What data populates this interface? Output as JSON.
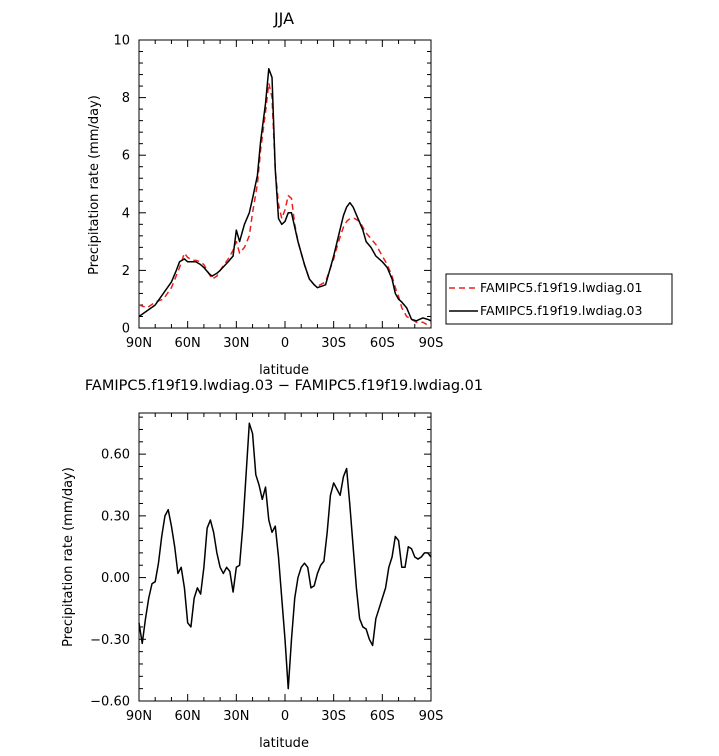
{
  "chart_data": [
    {
      "type": "line",
      "title": "JJA",
      "xlabel": "latitude",
      "ylabel": "Precipitation rate (mm/day)",
      "xlim": [
        90,
        -90
      ],
      "ylim": [
        0,
        10
      ],
      "xticks": [
        90,
        60,
        30,
        0,
        -30,
        -60,
        -90
      ],
      "xtick_labels": [
        "90N",
        "60N",
        "30N",
        "0",
        "30S",
        "60S",
        "90S"
      ],
      "yticks": [
        0,
        2,
        4,
        6,
        8,
        10
      ],
      "ytick_labels": [
        "0",
        "2",
        "4",
        "6",
        "8",
        "10"
      ],
      "legend_position": "right",
      "series": [
        {
          "name": "FAMIPC5.f19f19.lwdiag.01",
          "color": "#e8231d",
          "style": "dashed",
          "points": [
            [
              90,
              0.8
            ],
            [
              85,
              0.7
            ],
            [
              80,
              0.9
            ],
            [
              75,
              1.0
            ],
            [
              70,
              1.4
            ],
            [
              65,
              2.1
            ],
            [
              62,
              2.6
            ],
            [
              60,
              2.45
            ],
            [
              57,
              2.35
            ],
            [
              55,
              2.35
            ],
            [
              52,
              2.3
            ],
            [
              50,
              2.2
            ],
            [
              47,
              1.9
            ],
            [
              45,
              1.7
            ],
            [
              42,
              1.8
            ],
            [
              40,
              2.0
            ],
            [
              35,
              2.4
            ],
            [
              32,
              2.7
            ],
            [
              30,
              3.0
            ],
            [
              28,
              2.6
            ],
            [
              25,
              2.8
            ],
            [
              22,
              3.2
            ],
            [
              20,
              4.0
            ],
            [
              17,
              5.0
            ],
            [
              15,
              6.2
            ],
            [
              12,
              7.5
            ],
            [
              10,
              8.5
            ],
            [
              8,
              8.0
            ],
            [
              6,
              5.5
            ],
            [
              4,
              4.3
            ],
            [
              2,
              3.8
            ],
            [
              0,
              4.1
            ],
            [
              -2,
              4.6
            ],
            [
              -4,
              4.5
            ],
            [
              -6,
              3.6
            ],
            [
              -8,
              3.0
            ],
            [
              -12,
              2.2
            ],
            [
              -15,
              1.7
            ],
            [
              -18,
              1.5
            ],
            [
              -20,
              1.45
            ],
            [
              -25,
              1.6
            ],
            [
              -30,
              2.4
            ],
            [
              -33,
              3.0
            ],
            [
              -36,
              3.5
            ],
            [
              -38,
              3.7
            ],
            [
              -40,
              3.8
            ],
            [
              -43,
              3.8
            ],
            [
              -46,
              3.7
            ],
            [
              -48,
              3.5
            ],
            [
              -50,
              3.3
            ],
            [
              -53,
              3.1
            ],
            [
              -56,
              2.9
            ],
            [
              -60,
              2.5
            ],
            [
              -63,
              2.2
            ],
            [
              -66,
              1.8
            ],
            [
              -68,
              1.4
            ],
            [
              -70,
              1.1
            ],
            [
              -72,
              0.7
            ],
            [
              -75,
              0.4
            ],
            [
              -78,
              0.3
            ],
            [
              -81,
              0.2
            ],
            [
              -85,
              0.2
            ],
            [
              -88,
              0.1
            ],
            [
              -90,
              0.1
            ]
          ]
        },
        {
          "name": "FAMIPC5.f19f19.lwdiag.03",
          "color": "#000000",
          "style": "solid",
          "points": [
            [
              90,
              0.4
            ],
            [
              85,
              0.6
            ],
            [
              80,
              0.8
            ],
            [
              75,
              1.2
            ],
            [
              70,
              1.6
            ],
            [
              67,
              2.0
            ],
            [
              65,
              2.3
            ],
            [
              62,
              2.4
            ],
            [
              60,
              2.3
            ],
            [
              57,
              2.3
            ],
            [
              55,
              2.3
            ],
            [
              52,
              2.2
            ],
            [
              50,
              2.1
            ],
            [
              47,
              1.9
            ],
            [
              45,
              1.8
            ],
            [
              42,
              1.9
            ],
            [
              40,
              2.0
            ],
            [
              35,
              2.3
            ],
            [
              32,
              2.5
            ],
            [
              30,
              3.4
            ],
            [
              28,
              3.0
            ],
            [
              25,
              3.6
            ],
            [
              22,
              4.0
            ],
            [
              20,
              4.5
            ],
            [
              17,
              5.3
            ],
            [
              15,
              6.5
            ],
            [
              12,
              7.8
            ],
            [
              10,
              9.0
            ],
            [
              8,
              8.7
            ],
            [
              6,
              5.5
            ],
            [
              4,
              3.8
            ],
            [
              2,
              3.6
            ],
            [
              0,
              3.7
            ],
            [
              -2,
              4.0
            ],
            [
              -4,
              4.0
            ],
            [
              -6,
              3.5
            ],
            [
              -8,
              3.0
            ],
            [
              -12,
              2.2
            ],
            [
              -15,
              1.7
            ],
            [
              -18,
              1.5
            ],
            [
              -20,
              1.4
            ],
            [
              -25,
              1.5
            ],
            [
              -30,
              2.5
            ],
            [
              -33,
              3.2
            ],
            [
              -36,
              3.9
            ],
            [
              -38,
              4.2
            ],
            [
              -40,
              4.35
            ],
            [
              -42,
              4.2
            ],
            [
              -45,
              3.8
            ],
            [
              -48,
              3.4
            ],
            [
              -50,
              3.0
            ],
            [
              -53,
              2.8
            ],
            [
              -56,
              2.5
            ],
            [
              -60,
              2.3
            ],
            [
              -63,
              2.1
            ],
            [
              -66,
              1.7
            ],
            [
              -68,
              1.2
            ],
            [
              -70,
              1.0
            ],
            [
              -72,
              0.9
            ],
            [
              -75,
              0.7
            ],
            [
              -78,
              0.3
            ],
            [
              -81,
              0.25
            ],
            [
              -83,
              0.3
            ],
            [
              -85,
              0.35
            ],
            [
              -88,
              0.3
            ],
            [
              -90,
              0.25
            ]
          ]
        }
      ]
    },
    {
      "type": "line",
      "title": "FAMIPC5.f19f19.lwdiag.03 − FAMIPC5.f19f19.lwdiag.01",
      "xlabel": "latitude",
      "ylabel": "Precipitation rate (mm/day)",
      "xlim": [
        90,
        -90
      ],
      "ylim": [
        -0.6,
        0.8
      ],
      "xticks": [
        90,
        60,
        30,
        0,
        -30,
        -60,
        -90
      ],
      "xtick_labels": [
        "90N",
        "60N",
        "30N",
        "0",
        "30S",
        "60S",
        "90S"
      ],
      "yticks": [
        -0.6,
        -0.3,
        0.0,
        0.3,
        0.6
      ],
      "ytick_labels": [
        "−0.60",
        "−0.30",
        "0.00",
        "0.30",
        "0.60"
      ],
      "series": [
        {
          "color": "#000000",
          "style": "solid",
          "points": [
            [
              90,
              -0.22
            ],
            [
              88,
              -0.32
            ],
            [
              86,
              -0.2
            ],
            [
              84,
              -0.1
            ],
            [
              82,
              -0.03
            ],
            [
              80,
              -0.02
            ],
            [
              78,
              0.07
            ],
            [
              76,
              0.2
            ],
            [
              74,
              0.3
            ],
            [
              72,
              0.33
            ],
            [
              70,
              0.25
            ],
            [
              68,
              0.15
            ],
            [
              66,
              0.02
            ],
            [
              64,
              0.05
            ],
            [
              62,
              -0.05
            ],
            [
              60,
              -0.22
            ],
            [
              58,
              -0.24
            ],
            [
              56,
              -0.1
            ],
            [
              54,
              -0.05
            ],
            [
              52,
              -0.08
            ],
            [
              50,
              0.05
            ],
            [
              48,
              0.24
            ],
            [
              46,
              0.28
            ],
            [
              44,
              0.22
            ],
            [
              42,
              0.12
            ],
            [
              40,
              0.05
            ],
            [
              38,
              0.02
            ],
            [
              36,
              0.05
            ],
            [
              34,
              0.03
            ],
            [
              32,
              -0.07
            ],
            [
              30,
              0.05
            ],
            [
              28,
              0.06
            ],
            [
              26,
              0.25
            ],
            [
              24,
              0.5
            ],
            [
              22,
              0.75
            ],
            [
              20,
              0.7
            ],
            [
              18,
              0.5
            ],
            [
              16,
              0.45
            ],
            [
              14,
              0.38
            ],
            [
              12,
              0.44
            ],
            [
              10,
              0.28
            ],
            [
              8,
              0.22
            ],
            [
              6,
              0.25
            ],
            [
              4,
              0.1
            ],
            [
              2,
              -0.1
            ],
            [
              0,
              -0.3
            ],
            [
              -2,
              -0.54
            ],
            [
              -4,
              -0.3
            ],
            [
              -6,
              -0.1
            ],
            [
              -8,
              0.0
            ],
            [
              -10,
              0.05
            ],
            [
              -12,
              0.07
            ],
            [
              -14,
              0.05
            ],
            [
              -16,
              -0.05
            ],
            [
              -18,
              -0.04
            ],
            [
              -20,
              0.02
            ],
            [
              -22,
              0.06
            ],
            [
              -24,
              0.08
            ],
            [
              -26,
              0.22
            ],
            [
              -28,
              0.4
            ],
            [
              -30,
              0.46
            ],
            [
              -32,
              0.43
            ],
            [
              -34,
              0.4
            ],
            [
              -36,
              0.49
            ],
            [
              -38,
              0.53
            ],
            [
              -40,
              0.35
            ],
            [
              -42,
              0.15
            ],
            [
              -44,
              -0.05
            ],
            [
              -46,
              -0.2
            ],
            [
              -48,
              -0.24
            ],
            [
              -50,
              -0.25
            ],
            [
              -52,
              -0.3
            ],
            [
              -54,
              -0.33
            ],
            [
              -56,
              -0.2
            ],
            [
              -58,
              -0.15
            ],
            [
              -60,
              -0.1
            ],
            [
              -62,
              -0.05
            ],
            [
              -64,
              0.05
            ],
            [
              -66,
              0.1
            ],
            [
              -68,
              0.2
            ],
            [
              -70,
              0.18
            ],
            [
              -72,
              0.05
            ],
            [
              -74,
              0.05
            ],
            [
              -76,
              0.15
            ],
            [
              -78,
              0.14
            ],
            [
              -80,
              0.1
            ],
            [
              -82,
              0.09
            ],
            [
              -84,
              0.1
            ],
            [
              -86,
              0.12
            ],
            [
              -88,
              0.12
            ],
            [
              -90,
              0.1
            ]
          ]
        }
      ]
    }
  ]
}
